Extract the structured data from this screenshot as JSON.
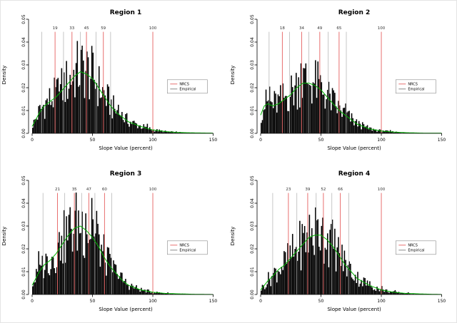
{
  "figure": {
    "background": "#ffffff",
    "colors": {
      "bar": "#000000",
      "curve": "#00b400",
      "nrcs_line": "#e87070",
      "empirical_line": "#b8b8b8",
      "axis": "#000000",
      "label_text": "#333333"
    },
    "legend": {
      "x": 112,
      "y_top_density": 0.0235,
      "entries": [
        {
          "label": "NRCS",
          "color": "#e87070"
        },
        {
          "label": "Empirical",
          "color": "#8a8a8a"
        }
      ]
    }
  },
  "chart_data": [
    {
      "type": "histogram",
      "title": "Region 1",
      "xlabel": "Slope Value (percent)",
      "ylabel": "Density",
      "xlim": [
        0,
        155
      ],
      "ylim": [
        0,
        0.05
      ],
      "x_ticks": [
        0,
        50,
        100,
        150
      ],
      "y_ticks": [
        0,
        0.01,
        0.02,
        0.03,
        0.04,
        0.05
      ],
      "nrcs_lines": [
        19,
        33,
        45,
        59,
        100
      ],
      "empirical_lines": [
        8,
        26,
        40,
        53,
        65
      ],
      "density_curve": {
        "x": [
          0,
          3,
          6,
          10,
          15,
          20,
          25,
          30,
          35,
          40,
          45,
          50,
          55,
          60,
          65,
          70,
          75,
          80,
          90,
          100,
          110,
          120,
          135,
          150
        ],
        "y": [
          0.003,
          0.006,
          0.009,
          0.012,
          0.014,
          0.016,
          0.019,
          0.022,
          0.025,
          0.027,
          0.026,
          0.024,
          0.02,
          0.016,
          0.012,
          0.009,
          0.007,
          0.005,
          0.003,
          0.0015,
          0.0008,
          0.0004,
          0.0002,
          0.0001
        ]
      },
      "seed": 1
    },
    {
      "type": "histogram",
      "title": "Region 2",
      "xlabel": "Slope Value (percent)",
      "ylabel": "Density",
      "xlim": [
        0,
        155
      ],
      "ylim": [
        0,
        0.05
      ],
      "x_ticks": [
        0,
        50,
        100,
        150
      ],
      "y_ticks": [
        0,
        0.01,
        0.02,
        0.03,
        0.04,
        0.05
      ],
      "nrcs_lines": [
        18,
        34,
        49,
        65,
        100
      ],
      "empirical_lines": [
        7,
        24,
        40,
        56,
        71
      ],
      "density_curve": {
        "x": [
          0,
          3,
          6,
          10,
          15,
          20,
          25,
          30,
          35,
          40,
          45,
          50,
          55,
          60,
          65,
          70,
          75,
          80,
          90,
          100,
          110,
          120,
          135,
          150
        ],
        "y": [
          0.008,
          0.012,
          0.013,
          0.012,
          0.013,
          0.015,
          0.017,
          0.02,
          0.022,
          0.022,
          0.021,
          0.019,
          0.016,
          0.013,
          0.01,
          0.008,
          0.006,
          0.004,
          0.002,
          0.001,
          0.0006,
          0.0003,
          0.0001,
          0.0001
        ]
      },
      "seed": 2
    },
    {
      "type": "histogram",
      "title": "Region 3",
      "xlabel": "Slope Value (percent)",
      "ylabel": "Density",
      "xlim": [
        0,
        155
      ],
      "ylim": [
        0,
        0.05
      ],
      "x_ticks": [
        0,
        50,
        100,
        150
      ],
      "y_ticks": [
        0,
        0.01,
        0.02,
        0.03,
        0.04,
        0.05
      ],
      "nrcs_lines": [
        21,
        35,
        47,
        60,
        100
      ],
      "empirical_lines": [
        9,
        27,
        41,
        52,
        66
      ],
      "density_curve": {
        "x": [
          0,
          3,
          6,
          10,
          15,
          20,
          25,
          30,
          35,
          40,
          45,
          50,
          55,
          60,
          65,
          70,
          75,
          80,
          90,
          100,
          110,
          120,
          135,
          150
        ],
        "y": [
          0.004,
          0.007,
          0.01,
          0.013,
          0.015,
          0.018,
          0.022,
          0.026,
          0.029,
          0.03,
          0.028,
          0.025,
          0.021,
          0.016,
          0.012,
          0.009,
          0.006,
          0.004,
          0.002,
          0.001,
          0.0005,
          0.0003,
          0.0001,
          0
        ]
      },
      "seed": 3
    },
    {
      "type": "histogram",
      "title": "Region 4",
      "xlabel": "Slope Value (percent)",
      "ylabel": "Density",
      "xlim": [
        0,
        155
      ],
      "ylim": [
        0,
        0.05
      ],
      "x_ticks": [
        0,
        50,
        100,
        150
      ],
      "y_ticks": [
        0,
        0.01,
        0.02,
        0.03,
        0.04,
        0.05
      ],
      "nrcs_lines": [
        23,
        39,
        52,
        66,
        100
      ],
      "empirical_lines": [
        10,
        30,
        46,
        59,
        73
      ],
      "density_curve": {
        "x": [
          0,
          3,
          6,
          10,
          15,
          20,
          25,
          30,
          35,
          40,
          45,
          50,
          55,
          60,
          65,
          70,
          75,
          80,
          90,
          100,
          110,
          120,
          135,
          150
        ],
        "y": [
          0.002,
          0.004,
          0.006,
          0.008,
          0.011,
          0.013,
          0.016,
          0.019,
          0.022,
          0.025,
          0.026,
          0.026,
          0.024,
          0.021,
          0.017,
          0.013,
          0.01,
          0.007,
          0.004,
          0.002,
          0.001,
          0.0005,
          0.0002,
          0
        ]
      },
      "seed": 4
    }
  ]
}
